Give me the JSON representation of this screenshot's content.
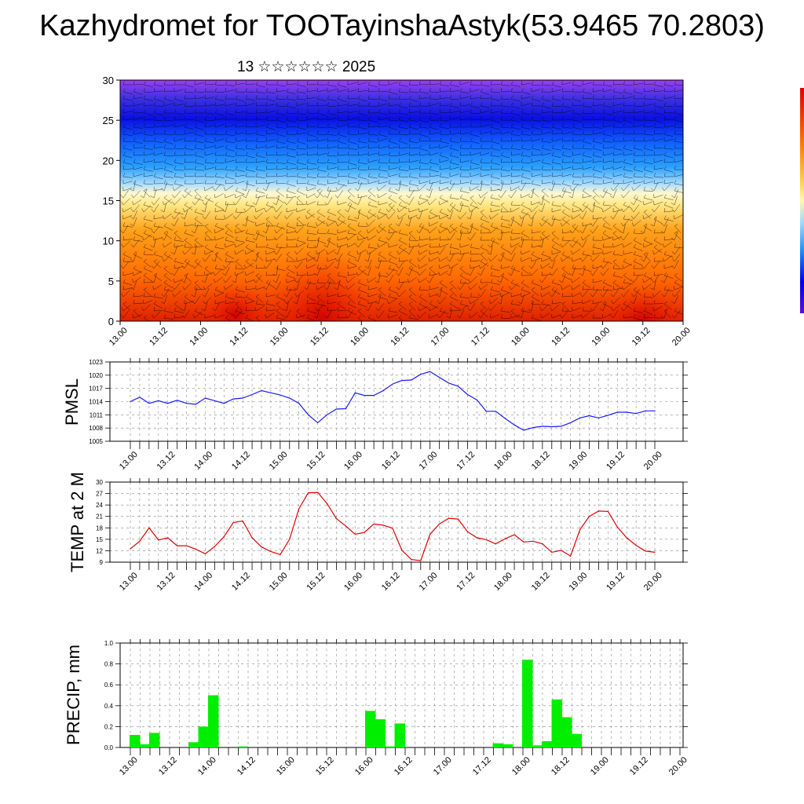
{
  "title": "Kazhydromet for TOOTayinshaAstyk(53.9465 70.2803)",
  "subtitle": "13 ☆☆☆☆☆☆ 2025",
  "time_labels": [
    "13.00",
    "13.12",
    "14.00",
    "14.12",
    "15.00",
    "15.12",
    "16.00",
    "16.12",
    "17.00",
    "17.12",
    "18.00",
    "18.12",
    "19.00",
    "19.12",
    "20.00"
  ],
  "colors": {
    "pmsl_line": "#1a1aff",
    "temp_line": "#e00000",
    "precip_bar": "#00ee00",
    "colorbar": [
      "#e00000",
      "#ff7a00",
      "#ffd34d",
      "#fff7b0",
      "#9fd8ff",
      "#1e90ff",
      "#0000ee",
      "#5a0fd8",
      "#9a2fe6"
    ]
  },
  "chart_data": [
    {
      "type": "heatmap",
      "name": "cross-section",
      "ylim": [
        0,
        30
      ],
      "yticks": [
        0,
        5,
        10,
        15,
        20,
        25,
        30
      ],
      "x": [
        "13.00",
        "13.12",
        "14.00",
        "14.12",
        "15.00",
        "15.12",
        "16.00",
        "16.12",
        "17.00",
        "17.12",
        "18.00",
        "18.12",
        "19.00",
        "19.12",
        "20.00"
      ],
      "overlay": "wind barbs"
    },
    {
      "type": "line",
      "ylabel": "PMSL",
      "ylim": [
        1005,
        1023
      ],
      "yticks": [
        1005,
        1008,
        1011,
        1014,
        1017,
        1020,
        1023
      ],
      "x": [
        0,
        1,
        2,
        3,
        4,
        5,
        6,
        7,
        8,
        9,
        10,
        11,
        12,
        13,
        14,
        15,
        16,
        17,
        18,
        19,
        20,
        21,
        22,
        23,
        24,
        25,
        26,
        27,
        28,
        29,
        30,
        31,
        32,
        33,
        34,
        35,
        36,
        37,
        38,
        39,
        40,
        41,
        42,
        43,
        44,
        45,
        46,
        47,
        48,
        49,
        50,
        51,
        52,
        53,
        54,
        55,
        56
      ],
      "values": [
        1014,
        1015,
        1013.6,
        1014.2,
        1013.6,
        1014.3,
        1013.6,
        1013.4,
        1014.8,
        1014.2,
        1013.6,
        1014.6,
        1014.8,
        1015.6,
        1016.5,
        1016,
        1015.5,
        1014.8,
        1013.6,
        1011,
        1009.2,
        1011,
        1012.3,
        1012.4,
        1016,
        1015.4,
        1015.4,
        1016.5,
        1018,
        1018.8,
        1018.9,
        1020.2,
        1020.8,
        1019.5,
        1018.2,
        1017.5,
        1015.6,
        1014.4,
        1011.8,
        1011.8,
        1010.2,
        1008.7,
        1007.5,
        1008.1,
        1008.4,
        1008.3,
        1008.4,
        1009.2,
        1010.3,
        1010.8,
        1010.3,
        1010.9,
        1011.6,
        1011.6,
        1011.3,
        1011.9,
        1011.9
      ]
    },
    {
      "type": "line",
      "ylabel": "TEMP at 2 M",
      "ylim": [
        9,
        30
      ],
      "yticks": [
        9,
        12,
        15,
        18,
        21,
        24,
        27,
        30
      ],
      "x": [
        0,
        1,
        2,
        3,
        4,
        5,
        6,
        7,
        8,
        9,
        10,
        11,
        12,
        13,
        14,
        15,
        16,
        17,
        18,
        19,
        20,
        21,
        22,
        23,
        24,
        25,
        26,
        27,
        28,
        29,
        30,
        31,
        32,
        33,
        34,
        35,
        36,
        37,
        38,
        39,
        40,
        41,
        42,
        43,
        44,
        45,
        46,
        47,
        48,
        49,
        50,
        51,
        52,
        53,
        54,
        55,
        56
      ],
      "values": [
        12.5,
        14.5,
        18,
        14.8,
        15.4,
        13.3,
        13.3,
        12.4,
        11.2,
        13.1,
        15.7,
        19.4,
        19.8,
        15.4,
        13,
        11.8,
        11,
        15,
        23,
        27.2,
        27.3,
        24.4,
        20.4,
        18.5,
        16.3,
        16.8,
        19,
        18.7,
        17.9,
        12.1,
        9.7,
        9.4,
        16.3,
        19,
        20.5,
        20.3,
        17,
        15.4,
        14.9,
        13.8,
        15.1,
        16.2,
        14.3,
        14.5,
        13.8,
        11.6,
        12.1,
        10.6,
        17.5,
        21,
        22.4,
        22.3,
        18.2,
        15.4,
        13.4,
        11.9,
        11.6
      ]
    },
    {
      "type": "bar",
      "ylabel": "PRECIP, mm",
      "ylim": [
        0,
        1
      ],
      "yticks": [
        "0.0",
        "0.2",
        "0.4",
        "0.6",
        "0.8",
        "1.0"
      ],
      "x": [
        0,
        1,
        2,
        3,
        4,
        5,
        6,
        7,
        8,
        9,
        10,
        11,
        12,
        13,
        14,
        15,
        16,
        17,
        18,
        19,
        20,
        21,
        22,
        23,
        24,
        25,
        26,
        27,
        28,
        29,
        30,
        31,
        32,
        33,
        34,
        35,
        36,
        37,
        38,
        39,
        40,
        41,
        42,
        43,
        44,
        45,
        46,
        47,
        48,
        49,
        50,
        51,
        52,
        53,
        54,
        55,
        56
      ],
      "values": [
        0.12,
        0.03,
        0.14,
        0,
        0,
        0,
        0.05,
        0.2,
        0.5,
        0,
        0,
        0.01,
        0,
        0,
        0,
        0,
        0,
        0,
        0,
        0,
        0,
        0,
        0,
        0,
        0.35,
        0.27,
        0.01,
        0.23,
        0,
        0,
        0,
        0,
        0,
        0,
        0,
        0,
        0,
        0.04,
        0.03,
        0,
        0.84,
        0.02,
        0.06,
        0.46,
        0.29,
        0.13,
        0,
        0,
        0,
        0,
        0,
        0,
        0,
        0,
        0,
        0,
        0
      ]
    }
  ]
}
